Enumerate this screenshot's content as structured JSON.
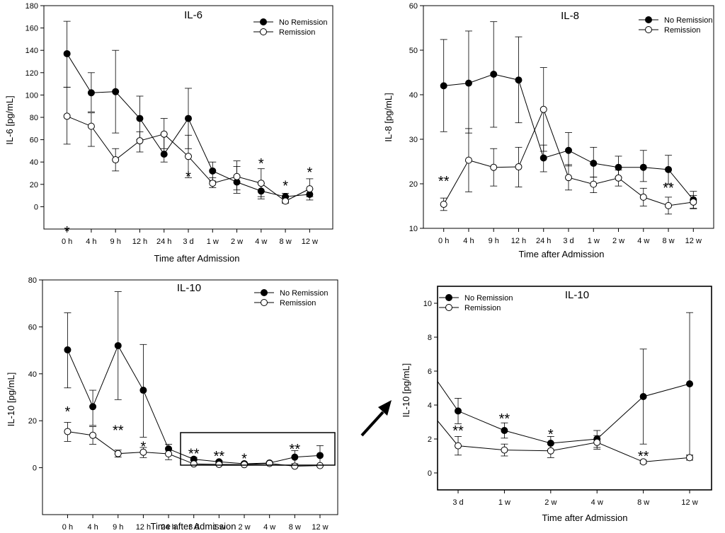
{
  "legend": {
    "no_remission": "No Remission",
    "remission": "Remission"
  },
  "chart_data": [
    {
      "type": "line",
      "title": "IL-6",
      "xlabel": "Time after Admission",
      "ylabel": "IL-6 [pg/mL]",
      "ylim": [
        -20,
        180
      ],
      "yticks": [
        0,
        20,
        40,
        60,
        80,
        100,
        120,
        140,
        160,
        180
      ],
      "categories": [
        "0 h",
        "4 h",
        "9 h",
        "12 h",
        "24 h",
        "3 d",
        "1 w",
        "2 w",
        "4 w",
        "8 w",
        "12 w"
      ],
      "series": [
        {
          "name": "No Remission",
          "marker": "filled",
          "values": [
            137,
            102,
            103,
            79,
            47,
            79,
            32,
            22,
            14,
            9,
            11
          ],
          "err_hi": [
            166,
            120,
            140,
            99,
            65,
            106,
            40,
            36,
            21,
            12,
            16
          ],
          "err_lo": [
            107,
            85,
            66,
            60,
            40,
            52,
            23,
            12,
            7,
            4,
            6
          ]
        },
        {
          "name": "Remission",
          "marker": "open",
          "values": [
            81,
            72,
            42,
            59,
            65,
            45,
            21,
            27,
            21,
            5,
            16
          ],
          "err_hi": [
            107,
            84,
            52,
            67,
            79,
            64,
            26,
            41,
            34,
            8,
            25
          ],
          "err_lo": [
            56,
            54,
            32,
            49,
            52,
            26,
            17,
            15,
            9,
            3,
            9
          ]
        }
      ],
      "annotations": [
        {
          "category": "0 h",
          "text": "*",
          "y": -22
        },
        {
          "category": "3 d",
          "text": "*",
          "y": 27
        },
        {
          "category": "4 w",
          "text": "*",
          "y": 39
        },
        {
          "category": "8 w",
          "text": "*",
          "y": 19
        },
        {
          "category": "12 w",
          "text": "*",
          "y": 31
        }
      ]
    },
    {
      "type": "line",
      "title": "IL-8",
      "xlabel": "Time after Admission",
      "ylabel": "IL-8 [pg/mL]",
      "ylim": [
        10,
        60
      ],
      "yticks": [
        10,
        20,
        30,
        40,
        50,
        60
      ],
      "categories": [
        "0 h",
        "4 h",
        "9 h",
        "12 h",
        "24 h",
        "3 d",
        "1 w",
        "2 w",
        "4 w",
        "8 w",
        "12 w"
      ],
      "series": [
        {
          "name": "No Remission",
          "marker": "filled",
          "values": [
            42,
            42.6,
            44.6,
            43.3,
            25.8,
            27.5,
            24.6,
            23.7,
            23.7,
            23.2,
            16.4
          ],
          "err_hi": [
            52.4,
            54.3,
            56.4,
            53,
            28.7,
            31.5,
            28.2,
            26.2,
            27.5,
            26.4,
            18.3
          ],
          "err_lo": [
            31.7,
            31.4,
            32.7,
            33.7,
            22.7,
            24,
            21.5,
            21.5,
            20.5,
            20,
            14.5
          ]
        },
        {
          "name": "Remission",
          "marker": "open",
          "values": [
            15.4,
            25.3,
            23.7,
            23.8,
            36.7,
            21.4,
            19.9,
            21.3,
            17,
            15.1,
            15.9
          ],
          "err_hi": [
            16.8,
            32.4,
            27.9,
            28.2,
            46.1,
            24.3,
            21.5,
            23.1,
            19,
            17,
            17.4
          ],
          "err_lo": [
            14,
            18.2,
            19.5,
            19.3,
            27.3,
            18.6,
            18,
            19.5,
            15,
            13.2,
            14.4
          ]
        }
      ],
      "annotations": [
        {
          "category": "0 h",
          "text": "**",
          "y": 20.6
        },
        {
          "category": "8 w",
          "text": "**",
          "y": 19.1
        }
      ]
    },
    {
      "type": "line",
      "title": "IL-10",
      "xlabel": "Time after Admission",
      "ylabel": "IL-10 [pg/mL]",
      "ylim": [
        -20,
        80
      ],
      "yticks": [
        0,
        20,
        40,
        60,
        80
      ],
      "categories": [
        "0 h",
        "4 h",
        "9 h",
        "12 h",
        "24 h",
        "3 d",
        "1 w",
        "2 w",
        "4 w",
        "8 w",
        "12 w"
      ],
      "series": [
        {
          "name": "No Remission",
          "marker": "filled",
          "values": [
            50.2,
            26,
            52,
            33,
            8,
            3.6,
            2.5,
            1.7,
            2,
            4.5,
            5.2
          ],
          "err_hi": [
            66,
            33,
            75,
            52.5,
            10,
            4.4,
            3,
            2.2,
            2.5,
            7.3,
            9.4
          ],
          "err_lo": [
            34,
            18,
            29,
            13,
            6,
            2.9,
            2,
            1.2,
            1.5,
            1.7,
            1
          ]
        },
        {
          "name": "Remission",
          "marker": "open",
          "values": [
            15.4,
            13.8,
            6,
            6.6,
            5.9,
            1.6,
            1.4,
            1.3,
            1.8,
            0.65,
            0.9
          ],
          "err_hi": [
            19.3,
            17.5,
            7.5,
            8.6,
            8.5,
            2.1,
            1.7,
            1.7,
            2.2,
            0.75,
            1
          ],
          "err_lo": [
            11.2,
            10,
            4.5,
            4.3,
            3.4,
            1.1,
            1,
            0.9,
            1.4,
            0.55,
            0.8
          ]
        }
      ],
      "annotations": [
        {
          "category": "0 h",
          "text": "*",
          "y": 24
        },
        {
          "category": "9 h",
          "text": "**",
          "y": 16
        },
        {
          "category": "12 h",
          "text": "*",
          "y": 9
        },
        {
          "category": "3 d",
          "text": "**",
          "y": 6
        },
        {
          "category": "1 w",
          "text": "**",
          "y": 5
        },
        {
          "category": "2 w",
          "text": "*",
          "y": 4
        },
        {
          "category": "8 w",
          "text": "**",
          "y": 8
        }
      ]
    },
    {
      "type": "line",
      "title": "IL-10",
      "xlabel": "Time after Admission",
      "ylabel": "IL-10 [pg/mL]",
      "ylim": [
        -1,
        11
      ],
      "yticks": [
        0,
        2,
        4,
        6,
        8,
        10
      ],
      "categories": [
        "3 d",
        "1 w",
        "2 w",
        "4 w",
        "8 w",
        "12 w"
      ],
      "series": [
        {
          "name": "No Remission",
          "marker": "filled",
          "values": [
            3.65,
            2.5,
            1.75,
            2,
            4.5,
            5.25
          ],
          "err_hi": [
            4.4,
            2.95,
            2.15,
            2.5,
            7.3,
            9.45
          ],
          "err_lo": [
            2.9,
            2.05,
            1.35,
            1.5,
            1.7,
            1.05
          ]
        },
        {
          "name": "Remission",
          "marker": "open",
          "values": [
            1.6,
            1.35,
            1.3,
            1.8,
            0.65,
            0.9
          ],
          "err_hi": [
            2.15,
            1.7,
            1.7,
            2.2,
            0.75,
            1.05
          ],
          "err_lo": [
            1.05,
            1,
            0.9,
            1.4,
            0.55,
            0.75
          ]
        }
      ],
      "annotations": [
        {
          "category": "3 d",
          "text": "**",
          "y": 2.5
        },
        {
          "category": "1 w",
          "text": "**",
          "y": 3.2
        },
        {
          "category": "2 w",
          "text": "*",
          "y": 2.3
        },
        {
          "category": "8 w",
          "text": "**",
          "y": 1
        }
      ]
    }
  ]
}
